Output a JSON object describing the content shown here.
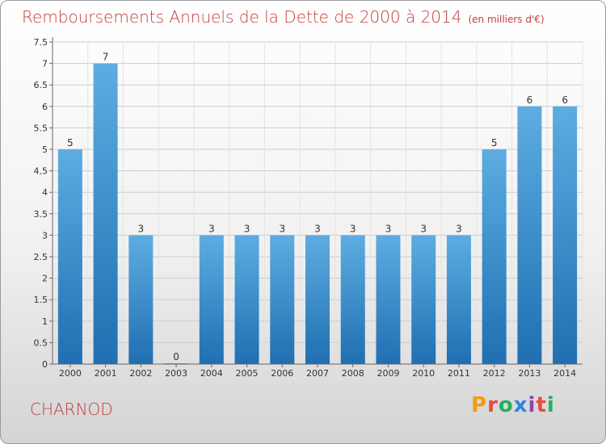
{
  "header": {
    "title": "Remboursements Annuels de la Dette de 2000 à 2014",
    "unit": "(en milliers d'€)"
  },
  "footer": {
    "commune": "CHARNOD",
    "brand": "Proxiti",
    "brand_colors": [
      "#f39c12",
      "#e74c3c",
      "#27ae60",
      "#2e86de",
      "#8e44ad",
      "#e74c3c",
      "#27ae60"
    ]
  },
  "colors": {
    "title": "#c43c3c",
    "bar_top": "#5dade2",
    "bar_bottom": "#1f6fb2",
    "grid": "#cccccc",
    "axis": "#666666"
  },
  "chart_data": {
    "type": "bar",
    "title": "Remboursements Annuels de la Dette de 2000 à 2014",
    "ylabel": "(en milliers d'€)",
    "categories": [
      "2000",
      "2001",
      "2002",
      "2003",
      "2004",
      "2005",
      "2006",
      "2007",
      "2008",
      "2009",
      "2010",
      "2011",
      "2012",
      "2013",
      "2014"
    ],
    "values": [
      5,
      7,
      3,
      0,
      3,
      3,
      3,
      3,
      3,
      3,
      3,
      3,
      5,
      6,
      6
    ],
    "data_labels": [
      "5",
      "7",
      "3",
      "0",
      "3",
      "3",
      "3",
      "3",
      "3",
      "3",
      "3",
      "3",
      "5",
      "6",
      "6"
    ],
    "yticks": [
      "0",
      "0.5",
      "1",
      "1.5",
      "2",
      "2.5",
      "3",
      "3.5",
      "4",
      "4.5",
      "5",
      "5.5",
      "6",
      "6.5",
      "7",
      "7.5"
    ],
    "ylim": [
      0,
      7.5
    ],
    "grid": true
  }
}
